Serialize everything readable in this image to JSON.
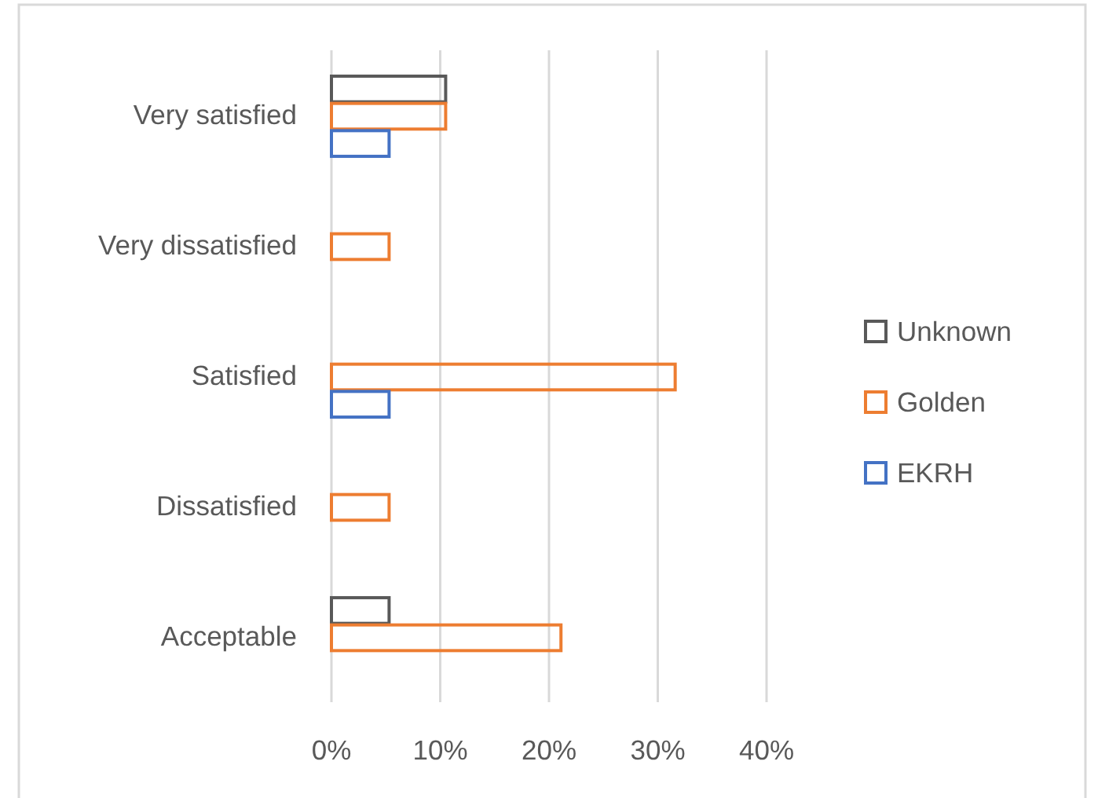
{
  "chart_data": {
    "type": "bar",
    "orientation": "horizontal",
    "categories": [
      "Very satisfied",
      "Very dissatisfied",
      "Satisfied",
      "Dissatisfied",
      "Acceptable"
    ],
    "series": [
      {
        "name": "Unknown",
        "color": "#595959",
        "values": [
          10.5,
          null,
          null,
          null,
          5.3
        ]
      },
      {
        "name": "Golden",
        "color": "#ed7d31",
        "values": [
          10.5,
          5.3,
          31.6,
          5.3,
          21.1
        ]
      },
      {
        "name": "EKRH",
        "color": "#4472c4",
        "values": [
          5.3,
          null,
          5.3,
          null,
          null
        ]
      }
    ],
    "xlim": [
      0,
      40
    ],
    "xticks": [
      {
        "value": 0,
        "label": "0%"
      },
      {
        "value": 10,
        "label": "10%"
      },
      {
        "value": 20,
        "label": "20%"
      },
      {
        "value": 30,
        "label": "30%"
      },
      {
        "value": 40,
        "label": "40%"
      }
    ],
    "grid": "x",
    "legend": "right"
  }
}
